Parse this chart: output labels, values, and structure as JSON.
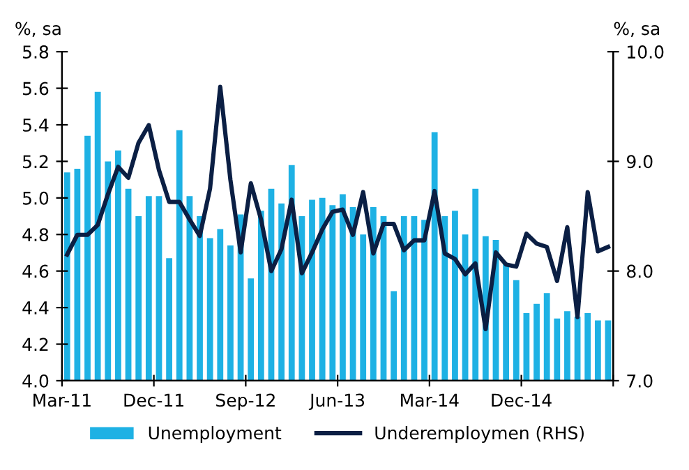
{
  "chart_data": {
    "type": "bar",
    "ylabel": "%, sa",
    "y2label": "%, sa",
    "x": [
      "2011-03-16",
      "2011-04-16",
      "2011-05-16",
      "2011-06-16",
      "2011-07-16",
      "2011-08-16",
      "2011-09-16",
      "2011-10-16",
      "2011-11-16",
      "2011-12-16",
      "2012-01-16",
      "2012-02-16",
      "2012-03-16",
      "2012-04-16",
      "2012-05-16",
      "2012-06-16",
      "2012-07-16",
      "2012-08-16",
      "2012-09-16",
      "2012-10-16",
      "2012-11-16",
      "2012-12-16",
      "2013-01-16",
      "2013-02-16",
      "2013-03-16",
      "2013-04-16",
      "2013-05-16",
      "2013-06-16",
      "2013-07-16",
      "2013-08-16",
      "2013-09-16",
      "2013-10-16",
      "2013-11-16",
      "2013-12-16",
      "2014-01-16",
      "2014-02-16",
      "2014-03-16",
      "2014-04-16",
      "2014-05-16",
      "2014-06-16",
      "2014-07-16",
      "2014-08-16",
      "2014-09-16",
      "2014-10-16",
      "2014-11-16",
      "2014-12-16",
      "2015-01-16",
      "2015-02-16",
      "2015-03-16",
      "2015-04-16",
      "2015-05-16",
      "2015-06-16",
      "2015-07-16",
      "2015-08-16"
    ],
    "series": [
      {
        "name": "Unemployment",
        "color": "#1eb1e4",
        "values": [
          5.14,
          5.16,
          5.34,
          5.58,
          5.2,
          5.26,
          5.05,
          4.9,
          5.01,
          5.01,
          4.67,
          5.37,
          5.01,
          4.9,
          4.78,
          4.83,
          4.74,
          4.91,
          4.56,
          4.93,
          5.05,
          4.97,
          5.18,
          4.9,
          4.99,
          5.0,
          4.96,
          5.02,
          4.95,
          4.8,
          4.95,
          4.9,
          4.49,
          4.9,
          4.9,
          4.88,
          5.36,
          4.9,
          4.93,
          4.8,
          5.05,
          4.79,
          4.77,
          4.64,
          4.55,
          4.37,
          4.42,
          4.48,
          4.34,
          4.38,
          4.35,
          4.37,
          4.33,
          4.33
        ]
      },
      {
        "name": "Underemploymen (RHS)",
        "type": "line",
        "axis": "y2",
        "color": "#0b1f44",
        "values": [
          8.15,
          8.33,
          8.33,
          8.42,
          8.7,
          8.95,
          8.85,
          9.17,
          9.33,
          8.92,
          8.63,
          8.63,
          8.47,
          8.32,
          8.75,
          9.68,
          8.83,
          8.17,
          8.8,
          8.47,
          8.0,
          8.2,
          8.65,
          7.98,
          8.17,
          8.38,
          8.54,
          8.56,
          8.33,
          8.72,
          8.16,
          8.43,
          8.43,
          8.19,
          8.28,
          8.28,
          8.73,
          8.16,
          8.11,
          7.97,
          8.07,
          7.47,
          8.17,
          8.06,
          8.04,
          8.34,
          8.25,
          8.22,
          7.91,
          8.4,
          7.58,
          8.72,
          8.18,
          8.22
        ]
      }
    ],
    "xlim": [
      "2011-03",
      "2015-09"
    ],
    "xticks": [
      {
        "value": "2011-03",
        "label": "Mar-11"
      },
      {
        "value": "2011-12",
        "label": "Dec-11"
      },
      {
        "value": "2012-09",
        "label": "Sep-12"
      },
      {
        "value": "2013-06",
        "label": "Jun-13"
      },
      {
        "value": "2014-03",
        "label": "Mar-14"
      },
      {
        "value": "2014-12",
        "label": "Dec-14"
      },
      {
        "value": "2015-09",
        "label": null
      }
    ],
    "ylim": [
      4.0,
      5.8
    ],
    "yticks": [
      {
        "value": 4.0,
        "label": "4.0"
      },
      {
        "value": 4.2,
        "label": "4.2"
      },
      {
        "value": 4.4,
        "label": "4.4"
      },
      {
        "value": 4.6,
        "label": "4.6"
      },
      {
        "value": 4.8,
        "label": "4.8"
      },
      {
        "value": 5.0,
        "label": "5.0"
      },
      {
        "value": 5.2,
        "label": "5.2"
      },
      {
        "value": 5.4,
        "label": "5.4"
      },
      {
        "value": 5.6,
        "label": "5.6"
      },
      {
        "value": 5.8,
        "label": "5.8"
      }
    ],
    "y2lim": [
      7.0,
      10.0
    ],
    "y2ticks": [
      {
        "value": 7.0,
        "label": "7.0"
      },
      {
        "value": 8.0,
        "label": "8.0"
      },
      {
        "value": 9.0,
        "label": "9.0"
      },
      {
        "value": 10.0,
        "label": "10.0"
      }
    ],
    "grid": false,
    "legend": "bottom"
  }
}
